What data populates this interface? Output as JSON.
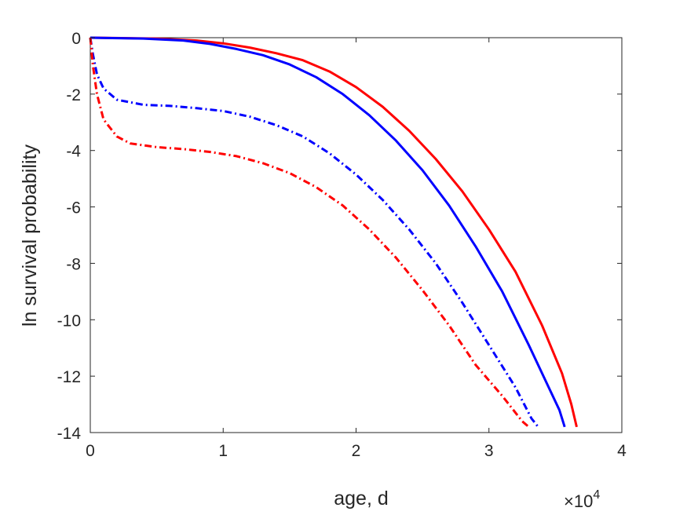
{
  "chart_data": {
    "type": "line",
    "xlabel": "age, d",
    "ylabel": "ln survival probability",
    "x_exponent": "4",
    "x_exponent_base": "×10",
    "xlim": [
      0,
      40000
    ],
    "ylim": [
      -14,
      0
    ],
    "xticks": [
      0,
      10000,
      20000,
      30000,
      40000
    ],
    "xtick_labels": [
      "0",
      "1",
      "2",
      "3",
      "4"
    ],
    "yticks": [
      0,
      -2,
      -4,
      -6,
      -8,
      -10,
      -12,
      -14
    ],
    "ytick_labels": [
      "0",
      "-2",
      "-4",
      "-6",
      "-8",
      "-10",
      "-12",
      "-14"
    ],
    "grid": false,
    "series": [
      {
        "color": "#ff0000",
        "style": "solid",
        "points": [
          [
            0,
            0
          ],
          [
            5000,
            -0.03
          ],
          [
            8000,
            -0.1
          ],
          [
            10000,
            -0.2
          ],
          [
            12000,
            -0.35
          ],
          [
            14000,
            -0.55
          ],
          [
            16000,
            -0.8
          ],
          [
            18000,
            -1.2
          ],
          [
            20000,
            -1.75
          ],
          [
            22000,
            -2.45
          ],
          [
            24000,
            -3.3
          ],
          [
            26000,
            -4.3
          ],
          [
            28000,
            -5.45
          ],
          [
            30000,
            -6.8
          ],
          [
            32000,
            -8.3
          ],
          [
            34000,
            -10.2
          ],
          [
            35500,
            -11.9
          ],
          [
            36200,
            -13.0
          ],
          [
            36600,
            -13.8
          ]
        ]
      },
      {
        "color": "#0000ff",
        "style": "solid",
        "points": [
          [
            0,
            0
          ],
          [
            4000,
            -0.03
          ],
          [
            7000,
            -0.1
          ],
          [
            9000,
            -0.22
          ],
          [
            11000,
            -0.4
          ],
          [
            13000,
            -0.62
          ],
          [
            15000,
            -0.95
          ],
          [
            17000,
            -1.4
          ],
          [
            19000,
            -2.0
          ],
          [
            21000,
            -2.75
          ],
          [
            23000,
            -3.65
          ],
          [
            25000,
            -4.7
          ],
          [
            27000,
            -5.95
          ],
          [
            29000,
            -7.4
          ],
          [
            31000,
            -9.0
          ],
          [
            33000,
            -10.9
          ],
          [
            34500,
            -12.4
          ],
          [
            35300,
            -13.2
          ],
          [
            35700,
            -13.8
          ]
        ]
      },
      {
        "color": "#0000ff",
        "style": "dashdot",
        "points": [
          [
            0,
            0
          ],
          [
            200,
            -0.6
          ],
          [
            500,
            -1.3
          ],
          [
            1000,
            -1.8
          ],
          [
            2000,
            -2.2
          ],
          [
            4000,
            -2.38
          ],
          [
            6000,
            -2.42
          ],
          [
            8000,
            -2.5
          ],
          [
            10000,
            -2.6
          ],
          [
            12000,
            -2.8
          ],
          [
            14000,
            -3.1
          ],
          [
            16000,
            -3.5
          ],
          [
            18000,
            -4.1
          ],
          [
            20000,
            -4.85
          ],
          [
            22000,
            -5.75
          ],
          [
            24000,
            -6.8
          ],
          [
            26000,
            -8.0
          ],
          [
            28000,
            -9.4
          ],
          [
            30000,
            -10.9
          ],
          [
            32000,
            -12.4
          ],
          [
            33200,
            -13.5
          ],
          [
            33700,
            -13.8
          ]
        ]
      },
      {
        "color": "#ff0000",
        "style": "dashdot",
        "points": [
          [
            0,
            0
          ],
          [
            200,
            -1.0
          ],
          [
            500,
            -2.0
          ],
          [
            1000,
            -2.9
          ],
          [
            2000,
            -3.5
          ],
          [
            3000,
            -3.75
          ],
          [
            5000,
            -3.88
          ],
          [
            7000,
            -3.95
          ],
          [
            9000,
            -4.05
          ],
          [
            11000,
            -4.2
          ],
          [
            13000,
            -4.45
          ],
          [
            15000,
            -4.8
          ],
          [
            17000,
            -5.3
          ],
          [
            19000,
            -5.95
          ],
          [
            21000,
            -6.8
          ],
          [
            23000,
            -7.8
          ],
          [
            25000,
            -8.95
          ],
          [
            27000,
            -10.2
          ],
          [
            29000,
            -11.6
          ],
          [
            31000,
            -12.7
          ],
          [
            32500,
            -13.6
          ],
          [
            33000,
            -13.8
          ]
        ]
      }
    ]
  }
}
